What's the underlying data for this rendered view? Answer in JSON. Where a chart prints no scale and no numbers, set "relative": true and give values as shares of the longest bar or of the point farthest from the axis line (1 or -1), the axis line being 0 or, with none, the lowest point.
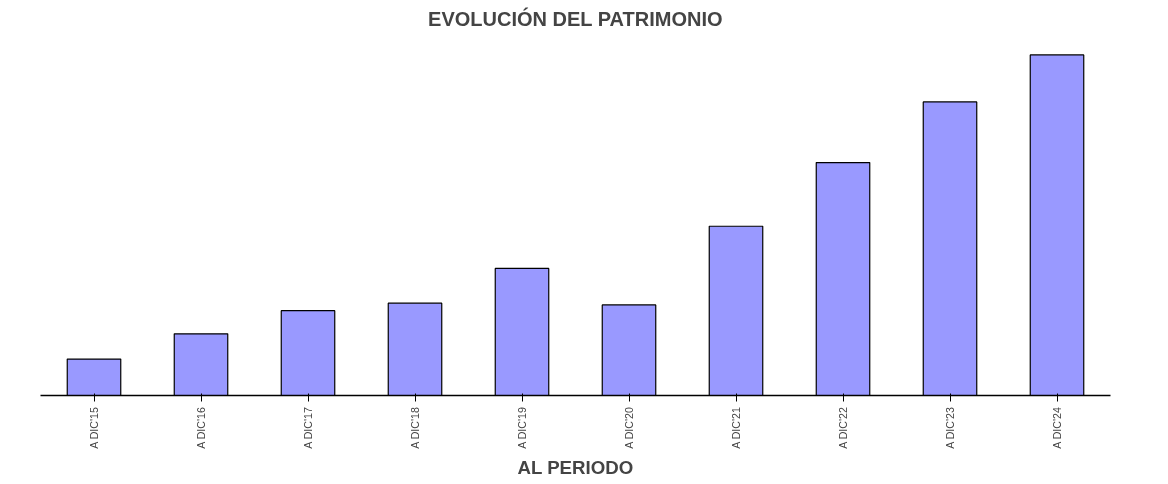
{
  "chart_data": {
    "type": "bar",
    "title": "EVOLUCIÓN DEL PATRIMONIO",
    "xlabel": "AL PERIODO",
    "relative": true,
    "categories": [
      "A DIC'15",
      "A DIC'16",
      "A DIC'17",
      "A DIC'18",
      "A DIC'19",
      "A DIC'20",
      "A DIC'21",
      "A DIC'22",
      "A DIC'23",
      "A DIC'24"
    ],
    "values": [
      0.107,
      0.181,
      0.249,
      0.271,
      0.373,
      0.266,
      0.497,
      0.684,
      0.862,
      1.0
    ],
    "color": "#9999ff",
    "grid": false
  }
}
